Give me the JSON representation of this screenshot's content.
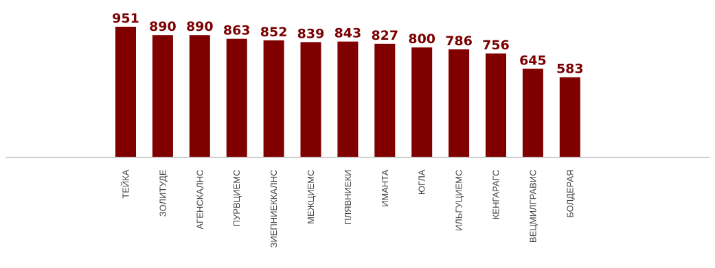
{
  "chart_data": {
    "type": "bar",
    "categories": [
      "ТЕЙКА",
      "ЗОЛИТУДЕ",
      "АГЕНСКАЛНС",
      "ПУРВЦИЕМС",
      "ЗИЕПНИЕККАЛНС",
      "МЕЖЦИЕМС",
      "ПЛЯВНИЕКИ",
      "ИМАНТА",
      "ЮГЛА",
      "ИЛЬГУЦИЕМС",
      "КЕНГАРАГС",
      "ВЕЦМИЛГРАВИС",
      "БОЛДЕРАЯ"
    ],
    "values": [
      951,
      890,
      890,
      863,
      852,
      839,
      843,
      827,
      800,
      786,
      756,
      645,
      583
    ],
    "data_labels": [
      "951",
      "890",
      "890",
      "863",
      "852",
      "839",
      "843",
      "827",
      "800",
      "786",
      "756",
      "645",
      "583"
    ],
    "ylim": [
      0,
      951
    ],
    "grid": false,
    "colors": {
      "bar": "#800000",
      "label": "#7b0000",
      "axis": "#bfbfbf",
      "category_text": "#444444"
    }
  }
}
